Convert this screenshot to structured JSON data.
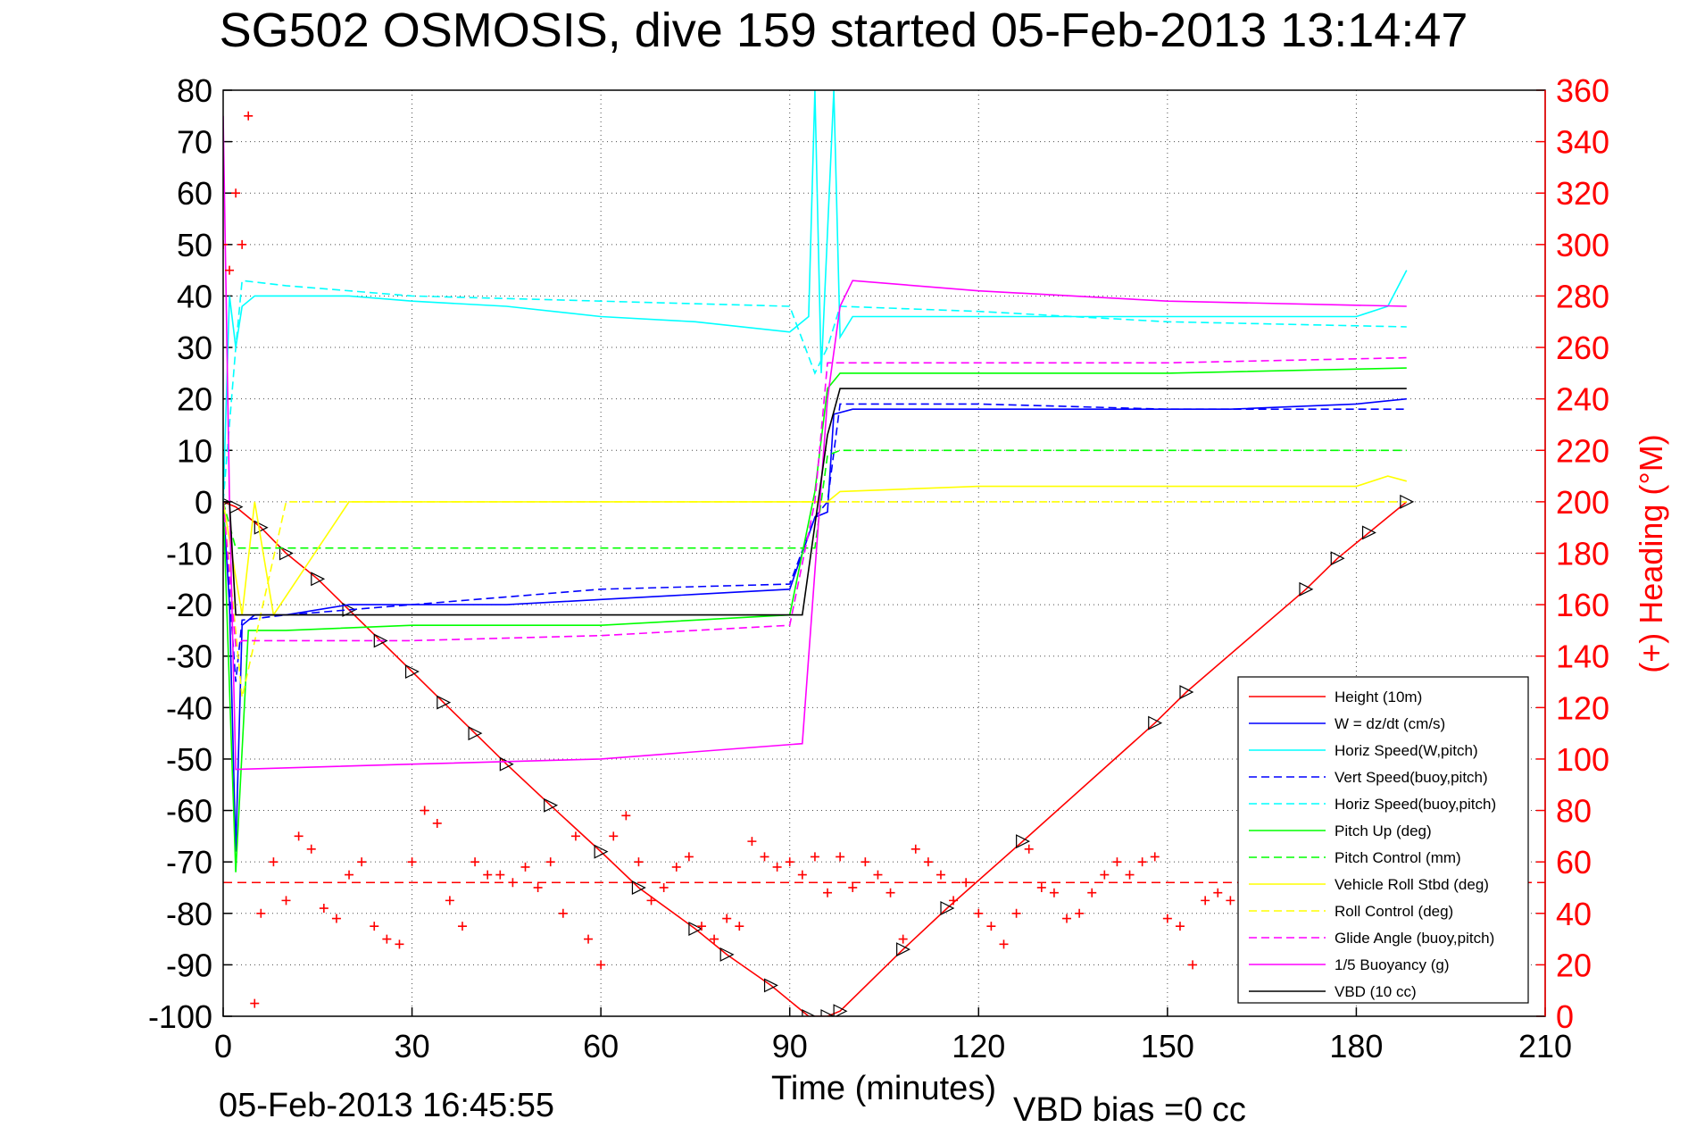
{
  "chart_data": {
    "type": "line",
    "title": "SG502 OSMOSIS, dive 159 started 05-Feb-2013 13:14:47",
    "xlabel": "Time (minutes)",
    "ylabel_right": "(+) Heading (°M)",
    "xlim": [
      0,
      210
    ],
    "ylim": [
      -100,
      80
    ],
    "ylim_right": [
      0,
      360
    ],
    "xticks": [
      "0",
      "30",
      "60",
      "90",
      "120",
      "150",
      "180",
      "210"
    ],
    "yticks": [
      "80",
      "70",
      "60",
      "50",
      "40",
      "30",
      "20",
      "10",
      "0",
      "-10",
      "-20",
      "-30",
      "-40",
      "-50",
      "-60",
      "-70",
      "-80",
      "-90",
      "-100"
    ],
    "yticks_right": [
      "360",
      "340",
      "320",
      "300",
      "280",
      "260",
      "240",
      "220",
      "200",
      "180",
      "160",
      "140",
      "120",
      "100",
      "80",
      "60",
      "40",
      "20",
      "0"
    ],
    "grid": true,
    "legend_position": "lower-right",
    "footer_date": "05-Feb-2013 16:45:55",
    "footer_bias": "VBD bias =0 cc",
    "series": [
      {
        "name": "Height (10m)",
        "color": "#ff0000",
        "style": "solid",
        "x": [
          0,
          2,
          6,
          10,
          15,
          20,
          25,
          30,
          35,
          40,
          45,
          52,
          60,
          66,
          75,
          80,
          87,
          93,
          96,
          98,
          108,
          115,
          127,
          148,
          153,
          172,
          177,
          182,
          188
        ],
        "y": [
          0,
          -1,
          -5,
          -10,
          -15,
          -21,
          -27,
          -33,
          -39,
          -45,
          -51,
          -59,
          -68,
          -75,
          -83,
          -88,
          -94,
          -100,
          -100,
          -99,
          -87,
          -79,
          -66,
          -43,
          -37,
          -17,
          -11,
          -6,
          0
        ]
      },
      {
        "name": "W = dz/dt (cm/s)",
        "color": "#0000ff",
        "style": "solid",
        "x": [
          0,
          1,
          2,
          3,
          5,
          10,
          20,
          30,
          45,
          60,
          75,
          90,
          94,
          96,
          97,
          100,
          120,
          140,
          160,
          180,
          188
        ],
        "y": [
          0,
          -20,
          -68,
          -24,
          -22,
          -22,
          -20,
          -20,
          -20,
          -19,
          -18,
          -17,
          -3,
          -2,
          17,
          18,
          18,
          18,
          18,
          19,
          20
        ]
      },
      {
        "name": "Horiz Speed(W,pitch)",
        "color": "#00ffff",
        "style": "solid",
        "x": [
          0,
          1,
          2,
          3,
          5,
          10,
          20,
          30,
          45,
          60,
          75,
          90,
          93,
          94,
          95,
          97,
          98,
          100,
          120,
          140,
          160,
          180,
          185,
          188
        ],
        "y": [
          0,
          40,
          30,
          38,
          40,
          40,
          40,
          39,
          38,
          36,
          35,
          33,
          36,
          80,
          25,
          80,
          32,
          36,
          36,
          36,
          36,
          36,
          38,
          45
        ]
      },
      {
        "name": "Vert Speed(buoy,pitch)",
        "color": "#0000ff",
        "style": "dashed",
        "x": [
          0,
          2,
          3,
          10,
          30,
          60,
          90,
          94,
          96,
          98,
          120,
          150,
          188
        ],
        "y": [
          0,
          -35,
          -23,
          -22,
          -20,
          -17,
          -16,
          -3,
          0,
          19,
          19,
          18,
          18
        ]
      },
      {
        "name": "Horiz Speed(buoy,pitch)",
        "color": "#00ffff",
        "style": "dashed",
        "x": [
          0,
          2,
          3,
          10,
          30,
          60,
          90,
          94,
          96,
          98,
          120,
          150,
          188
        ],
        "y": [
          0,
          30,
          43,
          42,
          40,
          39,
          38,
          25,
          30,
          38,
          37,
          35,
          34
        ]
      },
      {
        "name": "Pitch Up (deg)",
        "color": "#00ff00",
        "style": "solid",
        "x": [
          0,
          2,
          4,
          10,
          30,
          60,
          90,
          94,
          96,
          98,
          120,
          150,
          188
        ],
        "y": [
          0,
          -72,
          -25,
          -25,
          -24,
          -24,
          -22,
          2,
          22,
          25,
          25,
          25,
          26
        ]
      },
      {
        "name": "Pitch Control (mm)",
        "color": "#00ff00",
        "style": "dashed",
        "x": [
          0,
          2,
          3,
          10,
          30,
          60,
          90,
          94,
          96,
          98,
          120,
          150,
          188
        ],
        "y": [
          0,
          -9,
          -9,
          -9,
          -9,
          -9,
          -9,
          -9,
          9,
          10,
          10,
          10,
          10
        ]
      },
      {
        "name": "Vehicle Roll Stbd (deg)",
        "color": "#ffff00",
        "style": "solid",
        "x": [
          0,
          3,
          5,
          8,
          20,
          22,
          40,
          42,
          60,
          62,
          80,
          82,
          92,
          95,
          96,
          98,
          120,
          140,
          150,
          155,
          170,
          180,
          185,
          188
        ],
        "y": [
          0,
          -22,
          0,
          -22,
          0,
          0,
          0,
          0,
          0,
          0,
          0,
          0,
          0,
          0,
          0,
          2,
          3,
          3,
          3,
          3,
          3,
          3,
          5,
          4
        ]
      },
      {
        "name": "Roll Control (deg)",
        "color": "#ffff00",
        "style": "dashed",
        "x": [
          0,
          3,
          10,
          30,
          60,
          90,
          94,
          96,
          120,
          150,
          188
        ],
        "y": [
          0,
          -38,
          0,
          0,
          0,
          0,
          0,
          0,
          0,
          0,
          0
        ]
      },
      {
        "name": "Glide Angle (buoy,pitch)",
        "color": "#ff00ff",
        "style": "dashed",
        "x": [
          0,
          2,
          3,
          10,
          30,
          60,
          90,
          94,
          96,
          98,
          120,
          150,
          188
        ],
        "y": [
          0,
          -28,
          -27,
          -27,
          -27,
          -26,
          -24,
          0,
          27,
          27,
          27,
          27,
          28
        ]
      },
      {
        "name": "1/5 Buoyancy (g)",
        "color": "#ff00ff",
        "style": "solid",
        "x": [
          0,
          1,
          2,
          30,
          60,
          92,
          96,
          98,
          100,
          120,
          150,
          188
        ],
        "y": [
          75,
          0,
          -52,
          -51,
          -50,
          -47,
          20,
          38,
          43,
          41,
          39,
          38
        ]
      },
      {
        "name": "VBD (10 cc)",
        "color": "#000000",
        "style": "solid",
        "x": [
          0,
          1,
          2,
          92,
          96,
          98,
          188
        ],
        "y": [
          0,
          0,
          -22,
          -22,
          13,
          22,
          22
        ]
      },
      {
        "name": "Heading",
        "color": "#ff0000",
        "style": "marker-plus",
        "axis": "right",
        "x": [
          0,
          1,
          2,
          3,
          4,
          5,
          6,
          8,
          10,
          12,
          14,
          16,
          18,
          20,
          22,
          24,
          26,
          28,
          30,
          32,
          34,
          36,
          38,
          40,
          42,
          44,
          46,
          48,
          50,
          52,
          54,
          56,
          58,
          60,
          62,
          64,
          66,
          68,
          70,
          72,
          74,
          76,
          78,
          80,
          82,
          84,
          86,
          88,
          90,
          92,
          94,
          96,
          98,
          100,
          102,
          104,
          106,
          108,
          110,
          112,
          114,
          116,
          118,
          120,
          122,
          124,
          126,
          128,
          130,
          132,
          134,
          136,
          138,
          140,
          142,
          144,
          146,
          148,
          150,
          152,
          154,
          156,
          158,
          160,
          162
        ],
        "y": [
          300,
          290,
          320,
          300,
          350,
          5,
          40,
          60,
          45,
          70,
          65,
          42,
          38,
          55,
          60,
          35,
          30,
          28,
          60,
          80,
          75,
          45,
          35,
          60,
          55,
          55,
          52,
          58,
          50,
          60,
          40,
          70,
          30,
          20,
          70,
          78,
          60,
          45,
          50,
          58,
          62,
          35,
          30,
          38,
          35,
          68,
          62,
          58,
          60,
          55,
          62,
          48,
          62,
          50,
          60,
          55,
          48,
          30,
          65,
          60,
          55,
          45,
          52,
          40,
          35,
          28,
          40,
          65,
          50,
          48,
          38,
          40,
          48,
          55,
          60,
          55,
          60,
          62,
          38,
          35,
          20,
          45,
          48,
          45,
          48
        ]
      }
    ],
    "heading_mean": 52
  }
}
